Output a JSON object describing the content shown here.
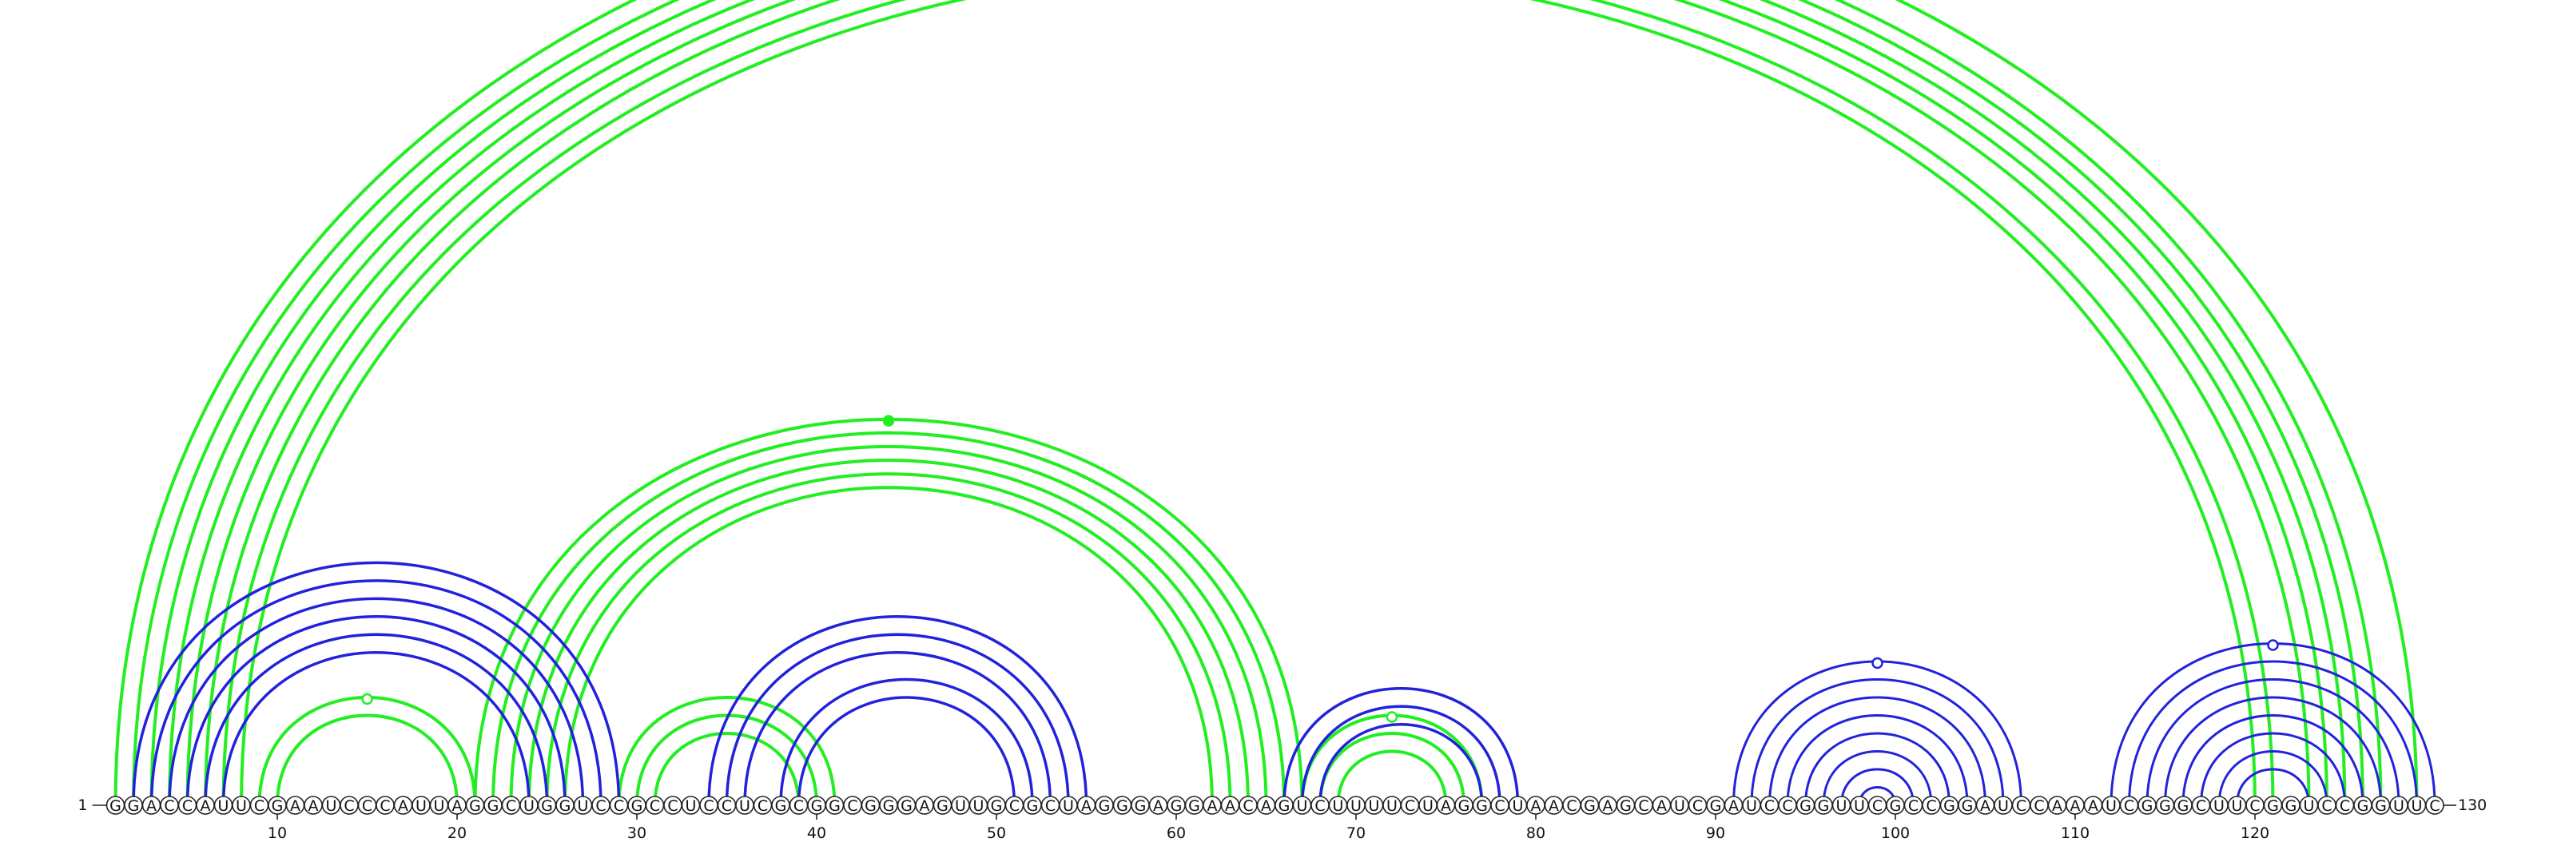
{
  "sequence": "GGACCAUUCGAAUCCCAUUAGGCUGGUCCGCCUCCUCGCGGCGGGAGUUGCGCUAGGGAGGAACAGUCUUUUCUAGGCUAACGAGCAUCGAUCCGGUUCGCCGGAUCCAAAUCGGGCUUCGGUCCGGUUC",
  "start_label": "1",
  "end_label": "130",
  "ticks": [
    10,
    20,
    30,
    40,
    50,
    60,
    70,
    80,
    90,
    100,
    110,
    120
  ],
  "colors": {
    "green": "#22ee22",
    "blue": "#2222dd"
  },
  "pair_groups": [
    {
      "color": "green",
      "width": 4.0,
      "pairs": [
        [
          1,
          129
        ],
        [
          2,
          127
        ],
        [
          3,
          126
        ],
        [
          4,
          125
        ],
        [
          5,
          124
        ],
        [
          6,
          123
        ],
        [
          7,
          121
        ],
        [
          8,
          120
        ]
      ],
      "marker": {
        "pos": 65.5,
        "filled": false
      }
    },
    {
      "color": "green",
      "width": 4.0,
      "pairs": [
        [
          9,
          21
        ],
        [
          10,
          20
        ]
      ],
      "marker": {
        "pos": 15,
        "filled": false
      }
    },
    {
      "color": "green",
      "width": 4.0,
      "pairs": [
        [
          21,
          67
        ],
        [
          22,
          66
        ],
        [
          23,
          65
        ],
        [
          24,
          64
        ],
        [
          25,
          63
        ],
        [
          26,
          62
        ]
      ],
      "marker": {
        "pos": 44.5,
        "filled": true
      }
    },
    {
      "color": "green",
      "width": 4.0,
      "pairs": [
        [
          29,
          41
        ],
        [
          30,
          40
        ],
        [
          31,
          39
        ]
      ]
    },
    {
      "color": "green",
      "width": 4.0,
      "pairs": [
        [
          67,
          77
        ],
        [
          68,
          76
        ],
        [
          69,
          75
        ]
      ],
      "marker": {
        "pos": 72,
        "filled": false
      }
    },
    {
      "color": "blue",
      "width": 3.5,
      "pairs": [
        [
          2,
          29
        ],
        [
          3,
          28
        ],
        [
          4,
          27
        ],
        [
          5,
          26
        ],
        [
          6,
          25
        ],
        [
          7,
          24
        ]
      ]
    },
    {
      "color": "blue",
      "width": 3.5,
      "pairs": [
        [
          34,
          55
        ],
        [
          35,
          54
        ],
        [
          36,
          53
        ]
      ]
    },
    {
      "color": "blue",
      "width": 3.5,
      "pairs": [
        [
          38,
          52
        ],
        [
          39,
          51
        ]
      ]
    },
    {
      "color": "blue",
      "width": 3.5,
      "pairs": [
        [
          66,
          79
        ],
        [
          67,
          78
        ],
        [
          68,
          77
        ]
      ]
    },
    {
      "color": "blue",
      "width": 3.0,
      "pairs": [
        [
          91,
          107
        ],
        [
          92,
          106
        ],
        [
          93,
          105
        ],
        [
          94,
          104
        ],
        [
          95,
          103
        ],
        [
          96,
          102
        ],
        [
          97,
          101
        ],
        [
          98,
          100
        ]
      ],
      "marker": {
        "pos": 99,
        "filled": false
      }
    },
    {
      "color": "blue",
      "width": 3.0,
      "pairs": [
        [
          112,
          130
        ],
        [
          113,
          129
        ],
        [
          114,
          128
        ],
        [
          115,
          127
        ],
        [
          116,
          126
        ],
        [
          117,
          125
        ],
        [
          118,
          124
        ],
        [
          119,
          123
        ]
      ],
      "marker": {
        "pos": 121,
        "filled": false
      }
    }
  ]
}
